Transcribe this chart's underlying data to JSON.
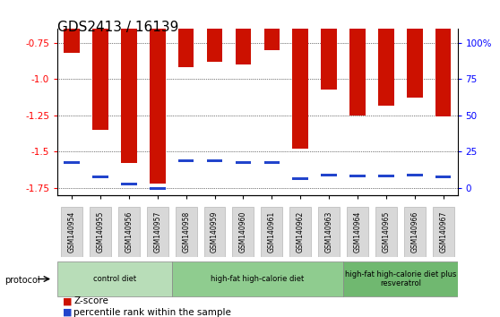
{
  "title": "GDS2413 / 16139",
  "samples": [
    "GSM140954",
    "GSM140955",
    "GSM140956",
    "GSM140957",
    "GSM140958",
    "GSM140959",
    "GSM140960",
    "GSM140961",
    "GSM140962",
    "GSM140963",
    "GSM140964",
    "GSM140965",
    "GSM140966",
    "GSM140967"
  ],
  "zscore": [
    -0.82,
    -1.35,
    -1.58,
    -1.72,
    -0.92,
    -0.88,
    -0.9,
    -0.8,
    -1.48,
    -1.07,
    -1.25,
    -1.18,
    -1.13,
    -1.26
  ],
  "percentile_pos": [
    -1.575,
    -1.675,
    -1.725,
    -1.755,
    -1.565,
    -1.565,
    -1.575,
    -1.575,
    -1.685,
    -1.66,
    -1.67,
    -1.67,
    -1.665,
    -1.675
  ],
  "groups": [
    {
      "label": "control diet",
      "start": 0,
      "end": 4,
      "color": "#b8ddb8"
    },
    {
      "label": "high-fat high-calorie diet",
      "start": 4,
      "end": 10,
      "color": "#8fcc8f"
    },
    {
      "label": "high-fat high-calorie diet plus\nresveratrol",
      "start": 10,
      "end": 14,
      "color": "#70b870"
    }
  ],
  "ylim": [
    -1.8,
    -0.65
  ],
  "yticks_left": [
    -1.75,
    -1.5,
    -1.25,
    -1.0,
    -0.75
  ],
  "yticks_right_vals": [
    0,
    25,
    50,
    75,
    100
  ],
  "yticks_right_pos": [
    -1.75,
    -1.5,
    -1.25,
    -1.0,
    -0.75
  ],
  "bar_color": "#cc1100",
  "blue_color": "#2244cc",
  "legend_zscore": "Z-score",
  "legend_pct": "percentile rank within the sample",
  "title_fontsize": 11
}
